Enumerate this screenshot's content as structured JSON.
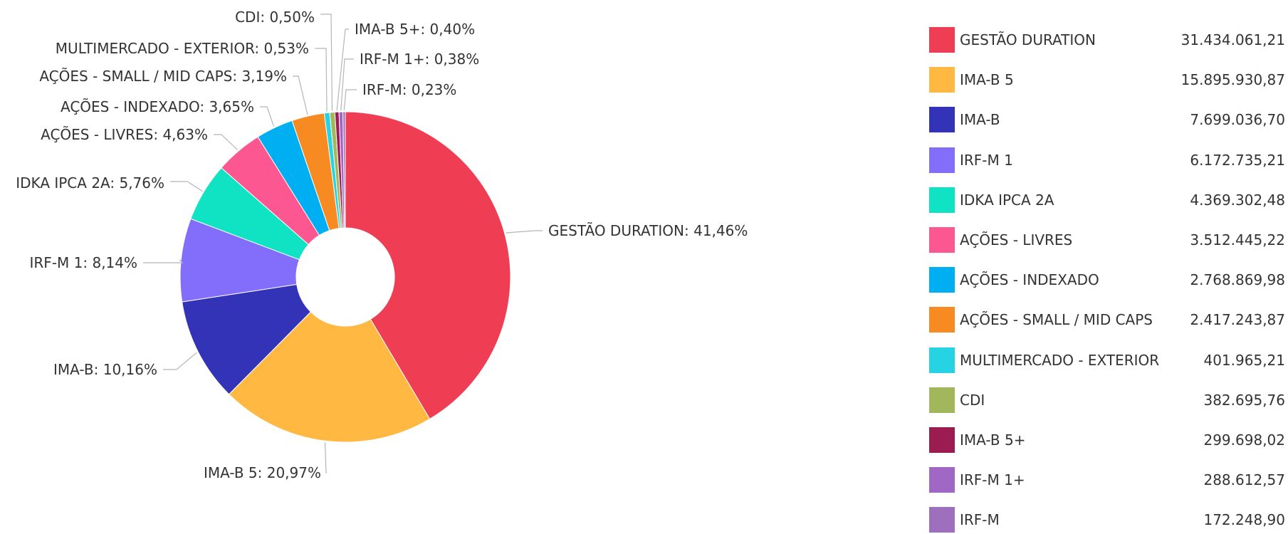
{
  "chart_data": {
    "type": "pie",
    "variant": "donut",
    "title": "",
    "start_angle_deg": 0,
    "direction": "clockwise",
    "legend_placement": "right",
    "slices": [
      {
        "name": "GESTÃO DURATION",
        "percent": 41.46,
        "percent_label": "GESTÃO DURATION: 41,46%",
        "value": 31434061.21,
        "value_label": "31.434.061,21",
        "color": "#ef3e54"
      },
      {
        "name": "IMA-B 5",
        "percent": 20.97,
        "percent_label": "IMA-B 5: 20,97%",
        "value": 15895930.87,
        "value_label": "15.895.930,87",
        "color": "#ffb942"
      },
      {
        "name": "IMA-B",
        "percent": 10.16,
        "percent_label": "IMA-B: 10,16%",
        "value": 7699036.7,
        "value_label": "7.699.036,70",
        "color": "#3333b8"
      },
      {
        "name": "IRF-M 1",
        "percent": 8.14,
        "percent_label": "IRF-M 1: 8,14%",
        "value": 6172735.21,
        "value_label": "6.172.735,21",
        "color": "#836efc"
      },
      {
        "name": "IDKA IPCA 2A",
        "percent": 5.76,
        "percent_label": "IDKA IPCA 2A: 5,76%",
        "value": 4369302.48,
        "value_label": "4.369.302,48",
        "color": "#0fe3c4"
      },
      {
        "name": "AÇÕES - LIVRES",
        "percent": 4.63,
        "percent_label": "AÇÕES - LIVRES: 4,63%",
        "value": 3512445.22,
        "value_label": "3.512.445,22",
        "color": "#fc5791"
      },
      {
        "name": "AÇÕES - INDEXADO",
        "percent": 3.65,
        "percent_label": "AÇÕES - INDEXADO: 3,65%",
        "value": 2768869.98,
        "value_label": "2.768.869,98",
        "color": "#00aef2"
      },
      {
        "name": "AÇÕES - SMALL / MID CAPS",
        "percent": 3.19,
        "percent_label": "AÇÕES - SMALL / MID CAPS: 3,19%",
        "value": 2417243.87,
        "value_label": "2.417.243,87",
        "color": "#f78b21"
      },
      {
        "name": "MULTIMERCADO - EXTERIOR",
        "percent": 0.53,
        "percent_label": "MULTIMERCADO - EXTERIOR: 0,53%",
        "value": 401965.21,
        "value_label": "401.965,21",
        "color": "#25d3e2"
      },
      {
        "name": "CDI",
        "percent": 0.5,
        "percent_label": "CDI: 0,50%",
        "value": 382695.76,
        "value_label": "382.695,76",
        "color": "#a2b75c"
      },
      {
        "name": "IMA-B 5+",
        "percent": 0.4,
        "percent_label": "IMA-B 5+: 0,40%",
        "value": 299698.02,
        "value_label": "299.698,02",
        "color": "#9b1c50"
      },
      {
        "name": "IRF-M 1+",
        "percent": 0.38,
        "percent_label": "IRF-M 1+: 0,38%",
        "value": 288612.57,
        "value_label": "288.612,57",
        "color": "#a067c5"
      },
      {
        "name": "IRF-M",
        "percent": 0.23,
        "percent_label": "IRF-M: 0,23%",
        "value": 172248.9,
        "value_label": "172.248,90",
        "color": "#9e6fbc"
      }
    ]
  }
}
